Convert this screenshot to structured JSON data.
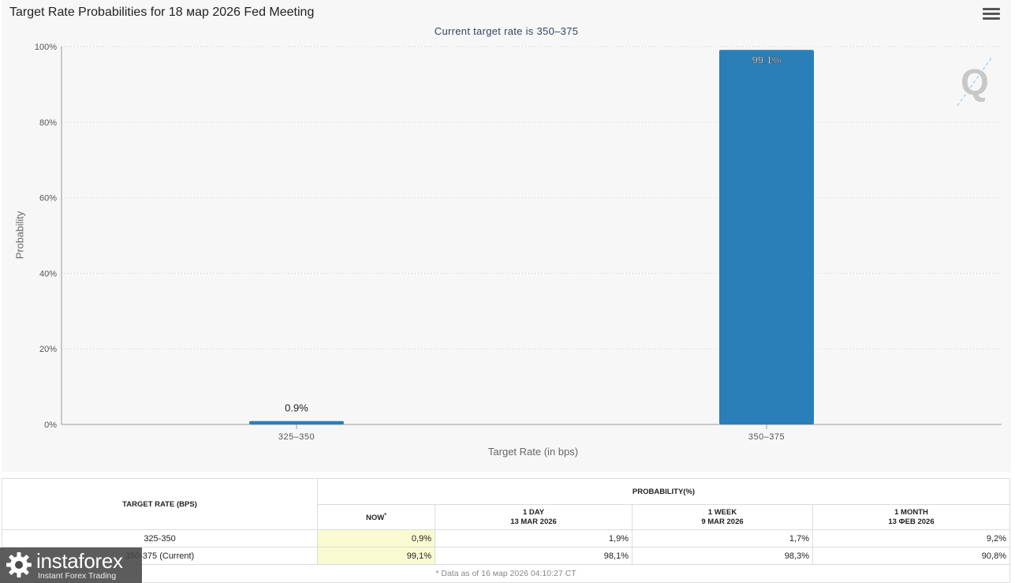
{
  "header": {
    "title": "Target Rate Probabilities for 18 мар 2026 Fed Meeting",
    "subtitle": "Current target rate is 350–375",
    "menu_icon": "hamburger-menu-icon"
  },
  "chart_data": {
    "type": "bar",
    "title": "Target Rate Probabilities for 18 мар 2026 Fed Meeting",
    "subtitle": "Current target rate is 350–375",
    "categories": [
      "325–350",
      "350–375"
    ],
    "values": [
      0.9,
      99.1
    ],
    "data_labels": [
      "0.9%",
      "99.1%"
    ],
    "xlabel": "Target Rate (in bps)",
    "ylabel": "Probability",
    "ylim": [
      0,
      100
    ],
    "yticks": [
      "0%",
      "20%",
      "40%",
      "60%",
      "80%",
      "100%"
    ],
    "ytick_values": [
      0,
      20,
      40,
      60,
      80,
      100
    ],
    "grid": true,
    "bar_color": "#2a7fb8"
  },
  "table": {
    "col_target": "TARGET RATE (BPS)",
    "col_probability": "PROBABILITY(%)",
    "sub_now": "NOW",
    "sub_now_mark": "*",
    "sub_cols": [
      {
        "line1": "1 DAY",
        "line2": "13 MAR 2026"
      },
      {
        "line1": "1 WEEK",
        "line2": "9 MAR 2026"
      },
      {
        "line1": "1 MONTH",
        "line2": "13 ФЕВ 2026"
      }
    ],
    "rows": [
      {
        "rate": "325-350",
        "now": "0,9%",
        "day": "1,9%",
        "week": "1,7%",
        "month": "9,2%"
      },
      {
        "rate": "350-375 (Current)",
        "now": "99,1%",
        "day": "98,1%",
        "week": "98,3%",
        "month": "90,8%"
      }
    ],
    "footnote": "* Data as of 16 мар 2026 04:10:27 CT"
  },
  "logo": {
    "name": "instaforex",
    "tagline": "Instant Forex Trading",
    "icon": "gear-logo-icon"
  }
}
